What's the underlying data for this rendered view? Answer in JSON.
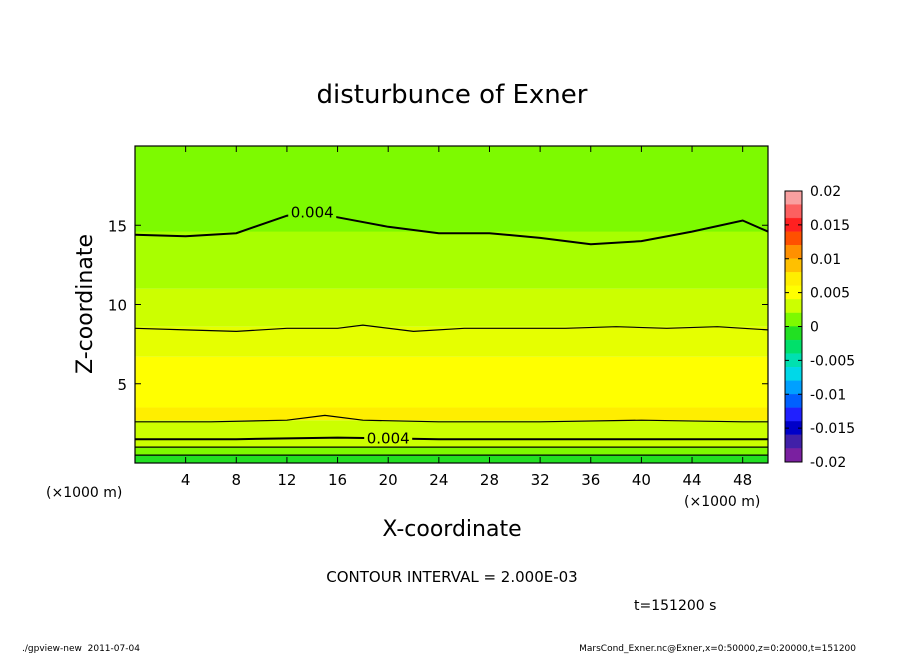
{
  "chart_data": {
    "type": "heatmap",
    "title": "disturbunce of Exner",
    "xlabel": "X-coordinate",
    "ylabel": "Z-coordinate",
    "x_unit": "(×1000 m)",
    "y_unit": "(×1000 m)",
    "xlim": [
      0,
      50
    ],
    "ylim": [
      0,
      20
    ],
    "x_ticks": [
      4,
      8,
      12,
      16,
      20,
      24,
      28,
      32,
      36,
      40,
      44,
      48
    ],
    "y_ticks": [
      5,
      10,
      15
    ],
    "grid": false,
    "contour_interval_text": "CONTOUR INTERVAL = 2.000E-03",
    "time_text": "t=151200 s",
    "footer_left": "./gpview-new  2011-07-04",
    "footer_right": "MarsCond_Exner.nc@Exner,x=0:50000,z=0:20000,t=151200",
    "colorbar": {
      "ticks": [
        "0.02",
        "0.015",
        "0.01",
        "0.005",
        "0",
        "-0.005",
        "-0.01",
        "-0.015",
        "-0.02"
      ],
      "levels": [
        {
          "lo": 0.018,
          "color": "#f9a0a0"
        },
        {
          "lo": 0.016,
          "color": "#fc6060"
        },
        {
          "lo": 0.014,
          "color": "#ff2020"
        },
        {
          "lo": 0.012,
          "color": "#ff5000"
        },
        {
          "lo": 0.01,
          "color": "#ff9000"
        },
        {
          "lo": 0.008,
          "color": "#ffc000"
        },
        {
          "lo": 0.006,
          "color": "#ffee00"
        },
        {
          "lo": 0.004,
          "color": "#ffff00"
        },
        {
          "lo": 0.002,
          "color": "#ccff00"
        },
        {
          "lo": 0.0,
          "color": "#7dfa00"
        },
        {
          "lo": -0.002,
          "color": "#22e022"
        },
        {
          "lo": -0.004,
          "color": "#00e06a"
        },
        {
          "lo": -0.006,
          "color": "#00e0b0"
        },
        {
          "lo": -0.008,
          "color": "#00d8e8"
        },
        {
          "lo": -0.01,
          "color": "#00a0ff"
        },
        {
          "lo": -0.012,
          "color": "#0060ff"
        },
        {
          "lo": -0.014,
          "color": "#2020ff"
        },
        {
          "lo": -0.016,
          "color": "#0000c8"
        },
        {
          "lo": -0.018,
          "color": "#4020a8"
        },
        {
          "lo": -0.02,
          "color": "#7a20a0"
        }
      ]
    },
    "bands": [
      {
        "z_bottom": 0.0,
        "z_top": 0.5,
        "color": "#22e022"
      },
      {
        "z_bottom": 0.5,
        "z_top": 1.0,
        "color": "#7dfa00"
      },
      {
        "z_bottom": 1.0,
        "z_top": 2.7,
        "color": "#ccff00"
      },
      {
        "z_bottom": 2.7,
        "z_top": 3.5,
        "color": "#ffee00"
      },
      {
        "z_bottom": 3.5,
        "z_top": 6.7,
        "color": "#ffff00"
      },
      {
        "z_bottom": 6.7,
        "z_top": 8.6,
        "color": "#e6ff00"
      },
      {
        "z_bottom": 8.6,
        "z_top": 11.0,
        "color": "#ccff00"
      },
      {
        "z_bottom": 11.0,
        "z_top": 20.0,
        "color": "#a8ff00"
      },
      {
        "z_bottom": 14.6,
        "z_top": 20.0,
        "color": "#7dfa00"
      }
    ],
    "contours": [
      {
        "level": 0.004,
        "label": "0.004",
        "width": 2.0,
        "label_x": 14,
        "x": [
          0,
          4,
          8,
          12,
          14,
          16,
          20,
          24,
          28,
          32,
          36,
          40,
          44,
          48,
          50
        ],
        "z": [
          14.4,
          14.3,
          14.5,
          15.6,
          15.8,
          15.5,
          14.9,
          14.5,
          14.5,
          14.2,
          13.8,
          14.0,
          14.6,
          15.3,
          14.6
        ]
      },
      {
        "level": 0.006,
        "label": "",
        "width": 1.2,
        "label_x": null,
        "x": [
          0,
          4,
          8,
          12,
          16,
          18,
          22,
          26,
          30,
          34,
          38,
          42,
          46,
          50
        ],
        "z": [
          8.5,
          8.4,
          8.3,
          8.5,
          8.5,
          8.7,
          8.3,
          8.5,
          8.5,
          8.5,
          8.6,
          8.5,
          8.6,
          8.4
        ]
      },
      {
        "level": 0.006,
        "label": "",
        "width": 1.2,
        "label_x": null,
        "x": [
          0,
          6,
          12,
          15,
          18,
          24,
          32,
          40,
          48,
          50
        ],
        "z": [
          2.6,
          2.6,
          2.7,
          3.0,
          2.7,
          2.6,
          2.6,
          2.7,
          2.6,
          2.6
        ]
      },
      {
        "level": 0.004,
        "label": "0.004",
        "width": 2.0,
        "label_x": 20,
        "x": [
          0,
          8,
          16,
          24,
          32,
          40,
          48,
          50
        ],
        "z": [
          1.5,
          1.5,
          1.6,
          1.5,
          1.5,
          1.5,
          1.5,
          1.5
        ]
      },
      {
        "level": 0.002,
        "label": "",
        "width": 1.2,
        "label_x": null,
        "x": [
          0,
          10,
          20,
          30,
          40,
          50
        ],
        "z": [
          1.0,
          1.0,
          1.0,
          1.0,
          1.0,
          1.0
        ]
      },
      {
        "level": 0.0,
        "label": "",
        "width": 1.2,
        "label_x": null,
        "x": [
          0,
          10,
          20,
          30,
          40,
          50
        ],
        "z": [
          0.5,
          0.5,
          0.5,
          0.5,
          0.5,
          0.5
        ]
      }
    ]
  }
}
